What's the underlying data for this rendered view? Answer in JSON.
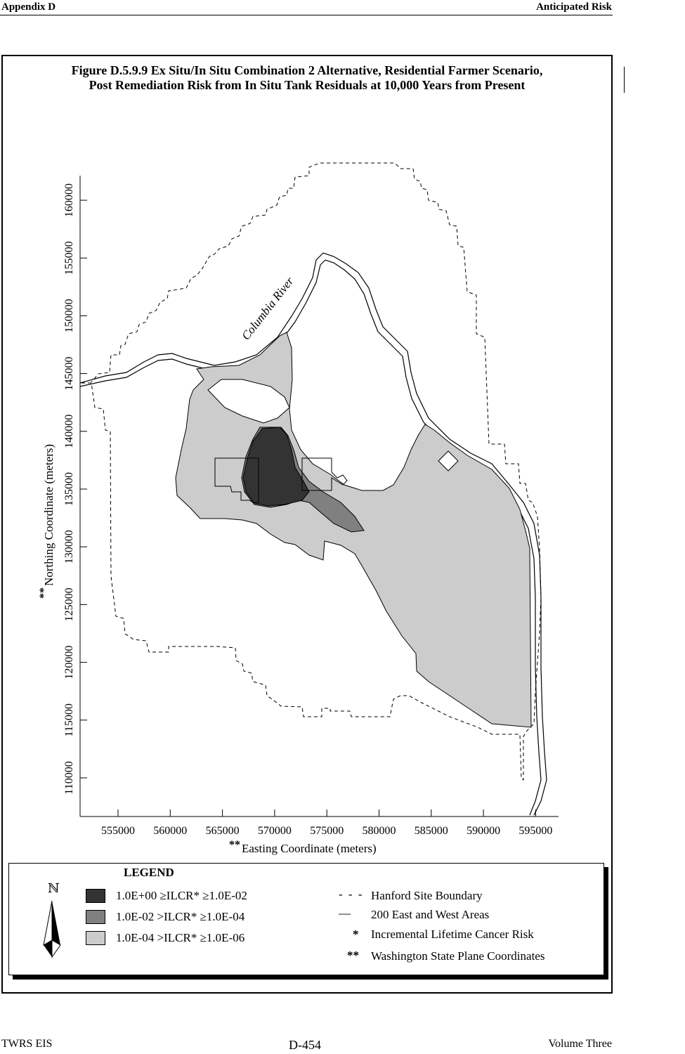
{
  "header": {
    "left": "Appendix D",
    "right": "Anticipated Risk"
  },
  "figure": {
    "title_line1": "Figure D.5.9.9  Ex Situ/In Situ Combination 2 Alternative, Residential Farmer Scenario,",
    "title_line2": "Post Remediation Risk from In Situ Tank Residuals at 10,000 Years from Present",
    "river_label": "Columbia River"
  },
  "axes": {
    "x_label": "Easting Coordinate (meters)",
    "x_label_prefix": "**",
    "y_label": "Northing Coordinate (meters)",
    "y_label_prefix": "**",
    "x_ticks": [
      "555000",
      "560000",
      "565000",
      "570000",
      "575000",
      "580000",
      "585000",
      "590000",
      "595000"
    ],
    "y_ticks": [
      "160000",
      "155000",
      "150000",
      "145000",
      "140000",
      "135000",
      "130000",
      "125000",
      "120000",
      "115000",
      "110000"
    ]
  },
  "legend": {
    "title": "LEGEND",
    "north_symbol": "ℕ",
    "risk_classes": [
      {
        "range": "1.0E+00  ≥ILCR* ≥1.0E-02",
        "color": "#333333"
      },
      {
        "range": "1.0E-02  >ILCR* ≥1.0E-04",
        "color": "#808080"
      },
      {
        "range": "1.0E-04  >ILCR* ≥1.0E-06",
        "color": "#cccccc"
      }
    ],
    "items": [
      {
        "symbol": "- - -",
        "label": "Hanford Site Boundary"
      },
      {
        "symbol": "—",
        "label": "200 East and West Areas"
      },
      {
        "symbol": "*",
        "label": "Incremental Lifetime Cancer Risk"
      },
      {
        "symbol": "**",
        "label": "Washington State Plane Coordinates"
      }
    ]
  },
  "footer": {
    "left": "TWRS EIS",
    "center": "D-454",
    "right": "Volume Three"
  },
  "colors": {
    "high": "#333333",
    "medium": "#808080",
    "low": "#cccccc"
  }
}
